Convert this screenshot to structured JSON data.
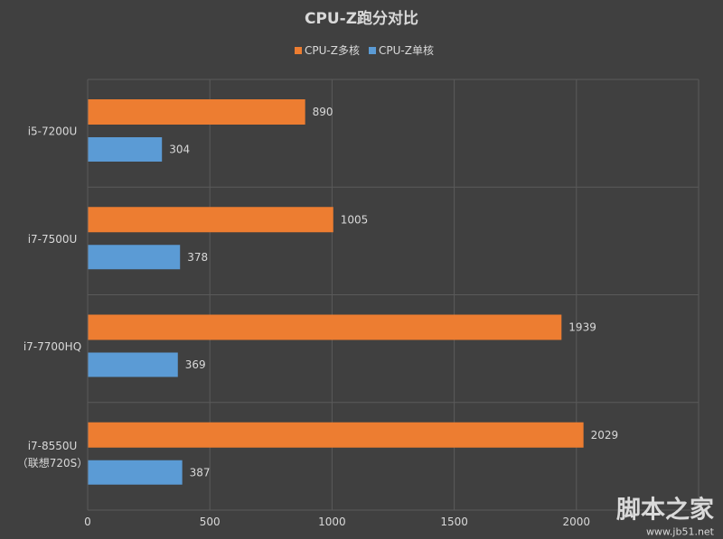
{
  "chart_data": {
    "type": "bar",
    "orientation": "horizontal",
    "title": "CPU-Z跑分对比",
    "categories": [
      "i5-7200U",
      "i7-7500U",
      "i7-7700HQ",
      "i7-8550U\n（联想720S）"
    ],
    "series": [
      {
        "name": "CPU-Z多核",
        "values": [
          890,
          1005,
          1939,
          2029
        ],
        "color": "#ED7D31"
      },
      {
        "name": "CPU-Z单核",
        "values": [
          304,
          378,
          369,
          387
        ],
        "color": "#5B9BD5"
      }
    ],
    "xlim": [
      0,
      2500
    ],
    "xticks": [
      0,
      500,
      1000,
      1500,
      2000
    ],
    "grid": true,
    "legend": "top-center",
    "data_labels": true
  },
  "colors": {
    "background": "#404040",
    "text": "#d9d9d9",
    "title": "#f2f2f2",
    "grid": "#5a5a5a"
  },
  "watermark": {
    "title": "脚本之家",
    "site": "www.jb51.net",
    "color": "#e3302e",
    "site_color": "#cfcfcf"
  }
}
